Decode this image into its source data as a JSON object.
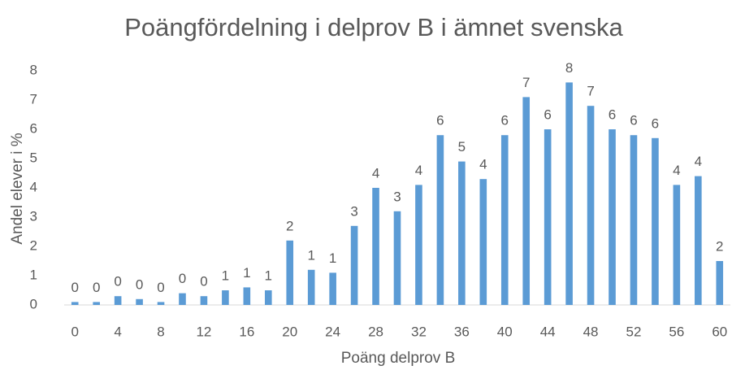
{
  "chart_data": {
    "type": "bar",
    "title": "Poängfördelning i delprov B i ämnet svenska",
    "x_label": "Poäng delprov B",
    "y_label": "Andel elever i %",
    "x": [
      0,
      2,
      4,
      6,
      8,
      10,
      12,
      14,
      16,
      18,
      20,
      22,
      24,
      26,
      28,
      30,
      32,
      34,
      36,
      38,
      40,
      42,
      44,
      46,
      48,
      50,
      52,
      54,
      56,
      58,
      60
    ],
    "values": [
      0.1,
      0.1,
      0.3,
      0.2,
      0.1,
      0.4,
      0.3,
      0.5,
      0.6,
      0.5,
      2.2,
      1.2,
      1.1,
      2.7,
      4.0,
      3.2,
      4.1,
      5.8,
      4.9,
      4.3,
      5.8,
      7.1,
      6.0,
      7.6,
      6.8,
      6.0,
      5.8,
      5.7,
      4.1,
      4.4,
      1.5
    ],
    "value_labels": [
      "0",
      "0",
      "0",
      "0",
      "0",
      "0",
      "0",
      "1",
      "1",
      "1",
      "2",
      "1",
      "1",
      "3",
      "4",
      "3",
      "4",
      "6",
      "5",
      "4",
      "6",
      "7",
      "6",
      "8",
      "7",
      "6",
      "6",
      "6",
      "4",
      "4",
      "2"
    ],
    "color": "#5b9bd5",
    "xlim": [
      -1,
      61
    ],
    "xticks": [
      0,
      4,
      8,
      12,
      16,
      20,
      24,
      28,
      32,
      36,
      40,
      44,
      48,
      52,
      56,
      60
    ],
    "ylim": [
      0,
      8
    ],
    "yticks": [
      0,
      1,
      2,
      3,
      4,
      5,
      6,
      7,
      8
    ],
    "grid": false
  }
}
